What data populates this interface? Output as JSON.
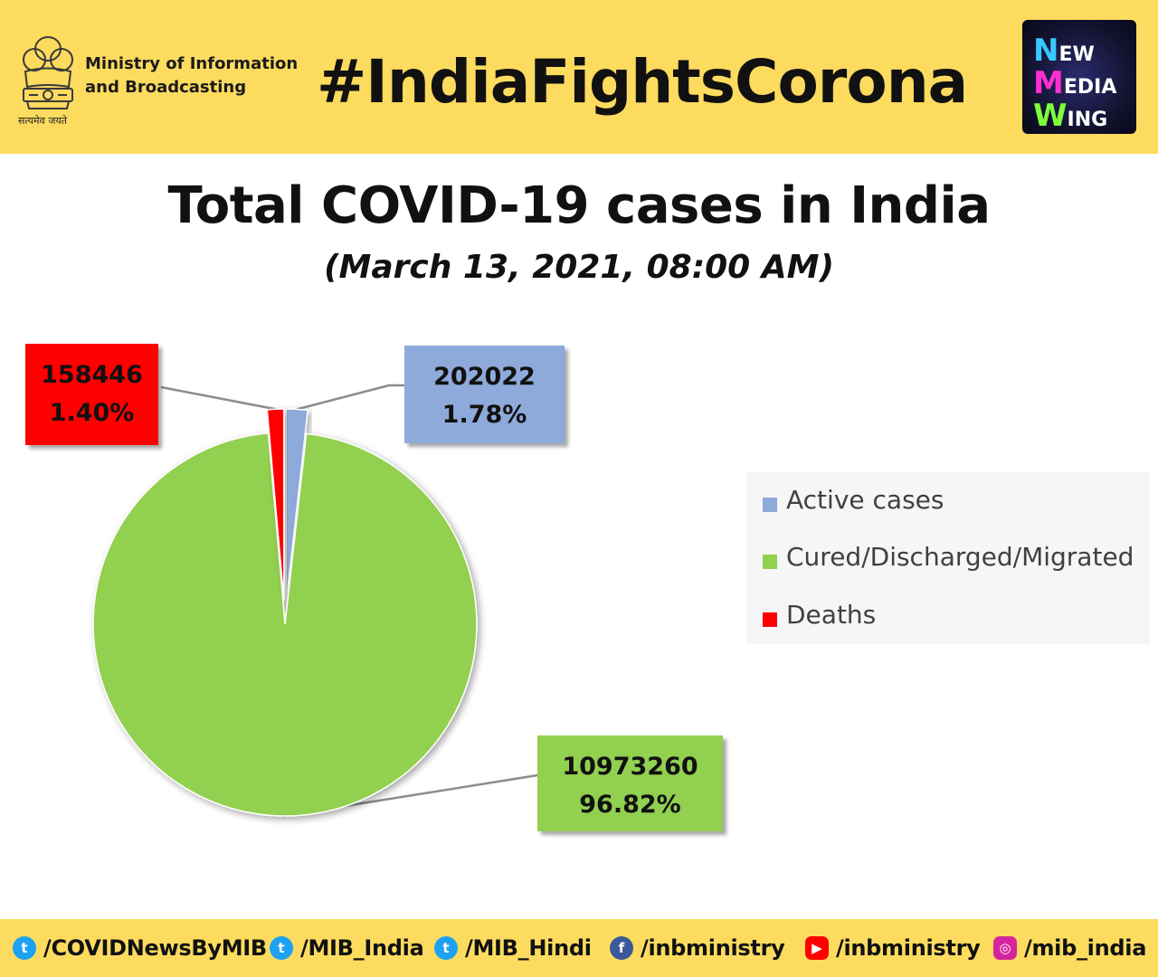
{
  "header": {
    "ministry_line1": "Ministry of Information",
    "ministry_line2": "and Broadcasting",
    "emblem_caption": "सत्यमेव जयते",
    "hashtag": "#IndiaFightsCorona",
    "logo_letters": [
      "N",
      "EW",
      "M",
      "EDIA",
      "W",
      "ING"
    ],
    "logo_colors": [
      "#37c8ff",
      "#ff2fd0",
      "#7dff3a"
    ]
  },
  "title": "Total COVID-19 cases in India",
  "subtitle": "(March 13, 2021, 08:00 AM)",
  "chart_data": {
    "type": "pie",
    "slices": [
      {
        "name": "Active cases",
        "value": 202022,
        "label_value": "202022",
        "label_percent": "1.78%",
        "color": "#8eaadb"
      },
      {
        "name": "Cured/Discharged/Migrated",
        "value": 10973260,
        "label_value": "10973260",
        "label_percent": "96.82%",
        "color": "#92d050"
      },
      {
        "name": "Deaths",
        "value": 158446,
        "label_value": "158446",
        "label_percent": "1.40%",
        "color": "#ff0000"
      }
    ],
    "legend_placement": "right"
  },
  "footer": {
    "socials": [
      {
        "icon": "twitter-icon",
        "handle": "/COVIDNewsByMIB",
        "color": "#1da1f2"
      },
      {
        "icon": "twitter-icon",
        "handle": "/MIB_India",
        "color": "#1da1f2"
      },
      {
        "icon": "twitter-icon",
        "handle": "/MIB_Hindi",
        "color": "#1da1f2"
      },
      {
        "icon": "facebook-icon",
        "handle": "/inbministry",
        "color": "#3b5998"
      },
      {
        "icon": "youtube-icon",
        "handle": "/inbministry",
        "color": "#ff0000"
      },
      {
        "icon": "instagram-icon",
        "handle": "/mib_india",
        "color": "#d6249f"
      }
    ]
  }
}
